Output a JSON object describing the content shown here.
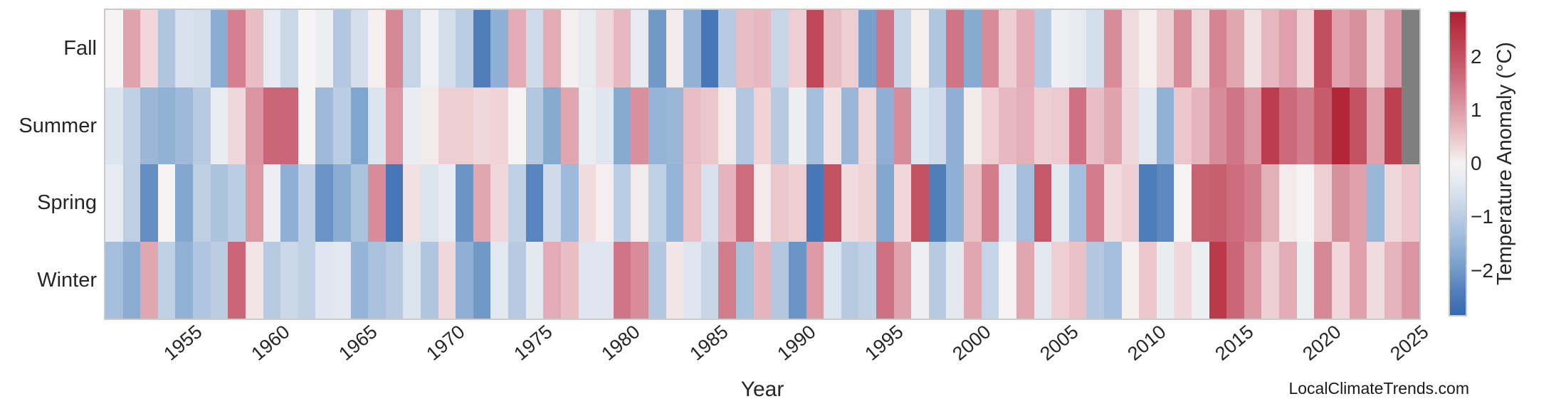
{
  "figure": {
    "background": "#ffffff",
    "text_color": "#262626",
    "frame_color": "#c9c9c9"
  },
  "watermark": "LocalClimateTrends.com",
  "colorbar": {
    "label": "Temperature Anomaly (°C)",
    "tick_labels": [
      "2",
      "1",
      "0",
      "−1",
      "−2"
    ],
    "tick_values": [
      2,
      1,
      0,
      -1,
      -2
    ],
    "vmin": -2.83,
    "vmax": 2.83,
    "gradient_stops": [
      {
        "v": 2.83,
        "color": "#ae1e2f"
      },
      {
        "v": 2.38,
        "color": "#bb3b4b"
      },
      {
        "v": 1.85,
        "color": "#c65b6c"
      },
      {
        "v": 1.32,
        "color": "#d58292"
      },
      {
        "v": 0.78,
        "color": "#e3adb6"
      },
      {
        "v": 0.38,
        "color": "#eed0d4"
      },
      {
        "v": 0.0,
        "color": "#f5f3f3"
      },
      {
        "v": -0.4,
        "color": "#e2e8f0"
      },
      {
        "v": -0.8,
        "color": "#c8d6e7"
      },
      {
        "v": -1.33,
        "color": "#a3bddb"
      },
      {
        "v": -1.86,
        "color": "#7ba2cd"
      },
      {
        "v": -2.39,
        "color": "#527fbb"
      },
      {
        "v": -2.83,
        "color": "#3468ae"
      }
    ]
  },
  "chart_data": {
    "type": "heatmap",
    "title": "",
    "xlabel": "Year",
    "colorbar_label": "Temperature Anomaly (°C)",
    "categories_y": [
      "Fall",
      "Summer",
      "Spring",
      "Winter"
    ],
    "x_start": 1950,
    "x_end": 2024,
    "x_ticks": [
      1955,
      1960,
      1965,
      1970,
      1975,
      1980,
      1985,
      1990,
      1995,
      2000,
      2005,
      2010,
      2015,
      2020,
      2025
    ],
    "value_range": [
      -2.83,
      2.83
    ],
    "missing_color": "#7f7f7f",
    "legend_position": "right-colorbar",
    "grid": false,
    "series": [
      {
        "name": "Fall",
        "values": [
          0.0,
          0.9,
          0.3,
          -1.15,
          -0.55,
          -0.6,
          -1.65,
          1.35,
          0.6,
          -0.3,
          -0.75,
          0.0,
          -0.2,
          -1.1,
          -0.6,
          0.05,
          1.25,
          -0.85,
          -0.1,
          -0.6,
          -1.0,
          -2.4,
          -1.6,
          0.8,
          -0.7,
          0.8,
          0.05,
          -0.3,
          0.3,
          0.65,
          -0.3,
          -2.0,
          0.1,
          -1.55,
          -2.55,
          -1.05,
          0.6,
          0.65,
          -0.8,
          0.4,
          2.15,
          0.6,
          0.4,
          -1.9,
          1.5,
          -0.8,
          0.05,
          -1.15,
          1.5,
          -1.7,
          1.2,
          0.4,
          0.8,
          -1.05,
          -0.15,
          -0.3,
          -0.6,
          1.2,
          0.25,
          0.05,
          0.4,
          1.2,
          0.3,
          1.3,
          0.85,
          0.2,
          0.65,
          0.95,
          0.35,
          2.05,
          0.95,
          1.15,
          0.4,
          1.0,
          null
        ]
      },
      {
        "name": "Summer",
        "values": [
          -0.5,
          -0.9,
          -1.45,
          -1.55,
          -1.4,
          -1.05,
          -0.25,
          0.3,
          1.1,
          1.7,
          1.7,
          0.0,
          -1.4,
          -1.0,
          -1.8,
          -0.5,
          1.05,
          -0.25,
          0.1,
          0.4,
          0.4,
          0.3,
          0.35,
          0.0,
          -1.1,
          -1.7,
          0.85,
          -0.25,
          -0.45,
          -1.7,
          1.15,
          -1.5,
          -1.45,
          0.6,
          0.5,
          0.1,
          -1.1,
          0.35,
          -1.05,
          -0.2,
          -1.3,
          0.2,
          -1.45,
          0.3,
          -1.6,
          1.2,
          -0.5,
          -0.7,
          -1.6,
          0.1,
          0.4,
          0.65,
          0.75,
          0.4,
          0.45,
          1.55,
          0.6,
          0.9,
          0.3,
          -0.4,
          -1.55,
          0.5,
          0.7,
          1.2,
          1.5,
          1.05,
          2.35,
          1.65,
          1.4,
          1.85,
          2.7,
          2.0,
          0.95,
          2.3,
          null
        ]
      },
      {
        "name": "Spring",
        "values": [
          -0.3,
          -0.95,
          -2.15,
          0.0,
          -1.75,
          -0.95,
          -1.2,
          -1.0,
          1.05,
          -0.2,
          -1.6,
          -0.9,
          -2.05,
          -1.65,
          -1.2,
          1.2,
          -2.55,
          0.2,
          -0.5,
          -0.3,
          -2.05,
          0.85,
          0.3,
          -0.9,
          -2.3,
          -0.7,
          -1.4,
          0.25,
          0.05,
          -1.0,
          0.1,
          -0.9,
          -1.5,
          0.55,
          -0.55,
          0.7,
          1.6,
          0.1,
          0.5,
          0.4,
          -2.55,
          2.0,
          0.25,
          0.35,
          -1.75,
          0.3,
          2.0,
          -2.4,
          -1.6,
          0.55,
          1.4,
          -0.45,
          -1.3,
          1.9,
          -0.4,
          -1.3,
          1.4,
          0.25,
          0.4,
          -2.45,
          -2.25,
          0.0,
          1.75,
          1.8,
          1.6,
          1.4,
          0.75,
          0.1,
          0.0,
          0.4,
          1.15,
          0.95,
          -1.45,
          0.3,
          0.5
        ]
      },
      {
        "name": "Winter",
        "values": [
          -1.3,
          -1.65,
          0.85,
          -0.9,
          -1.55,
          -1.15,
          -1.0,
          1.7,
          0.15,
          -1.05,
          -0.75,
          -0.9,
          -0.45,
          -0.4,
          -1.5,
          -1.25,
          -1.05,
          -0.5,
          -1.15,
          0.3,
          -1.6,
          -2.0,
          -0.4,
          -1.05,
          -0.35,
          0.8,
          0.6,
          -0.45,
          -0.45,
          1.5,
          1.2,
          -1.1,
          0.15,
          -0.45,
          -0.8,
          1.4,
          -1.25,
          0.7,
          -1.1,
          -2.05,
          1.0,
          -0.5,
          -1.05,
          -0.9,
          1.55,
          0.9,
          -0.15,
          -1.05,
          -0.35,
          0.85,
          -0.85,
          0.0,
          0.85,
          -0.4,
          0.4,
          0.55,
          -1.1,
          -1.3,
          0.05,
          0.5,
          -0.25,
          0.3,
          -0.2,
          2.4,
          1.7,
          1.05,
          0.4,
          0.8,
          -0.2,
          1.25,
          0.3,
          0.95,
          0.25,
          0.7,
          1.1
        ]
      }
    ]
  }
}
